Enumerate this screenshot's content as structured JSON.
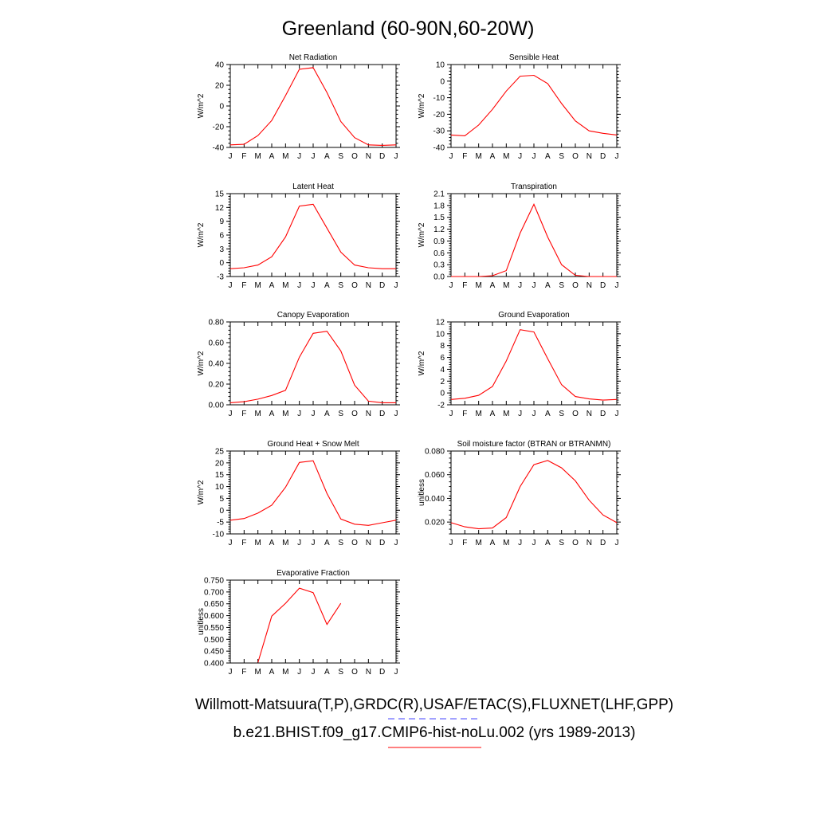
{
  "title": "Greenland (60-90N,60-20W)",
  "legend": [
    {
      "label": "Willmott-Matsuura(T,P),GRDC(R),USAF/ETAC(S),FLUXNET(LHF,GPP)",
      "color": "#4444ff",
      "style": "dashed"
    },
    {
      "label": "b.e21.BHIST.f09_g17.CMIP6-hist-noLu.002 (yrs 1989-2013)",
      "color": "#ff0000",
      "style": "solid"
    }
  ],
  "series_color": "#ff0000",
  "chart_data": [
    {
      "type": "line",
      "title": "Net Radiation",
      "ylabel": "W/m^2",
      "x": [
        "J",
        "F",
        "M",
        "A",
        "M",
        "J",
        "J",
        "A",
        "S",
        "O",
        "N",
        "D",
        "J"
      ],
      "ylim": [
        -40,
        40
      ],
      "yticks": [
        -40,
        -20,
        0,
        20,
        40
      ],
      "ytick_labels": [
        "-40",
        "-20",
        "0",
        "20",
        "40"
      ],
      "series": [
        {
          "values": [
            -37.5,
            -37,
            -28.5,
            -14,
            10,
            35.5,
            37,
            13,
            -15,
            -30.5,
            -37.5,
            -38,
            -37.5
          ]
        }
      ]
    },
    {
      "type": "line",
      "title": "Sensible Heat",
      "ylabel": "W/m^2",
      "x": [
        "J",
        "F",
        "M",
        "A",
        "M",
        "J",
        "J",
        "A",
        "S",
        "O",
        "N",
        "D",
        "J"
      ],
      "ylim": [
        -40,
        10
      ],
      "yticks": [
        -40,
        -30,
        -20,
        -10,
        0,
        10
      ],
      "ytick_labels": [
        "-40",
        "-30",
        "-20",
        "-10",
        "0",
        "10"
      ],
      "series": [
        {
          "values": [
            -32.5,
            -33,
            -26.5,
            -17,
            -6,
            3,
            3.5,
            -1.5,
            -13.5,
            -24,
            -30,
            -31.5,
            -32.5
          ]
        }
      ]
    },
    {
      "type": "line",
      "title": "Latent Heat",
      "ylabel": "W/m^2",
      "x": [
        "J",
        "F",
        "M",
        "A",
        "M",
        "J",
        "J",
        "A",
        "S",
        "O",
        "N",
        "D",
        "J"
      ],
      "ylim": [
        -3,
        15
      ],
      "yticks": [
        -3,
        0,
        3,
        6,
        9,
        12,
        15
      ],
      "ytick_labels": [
        "-3",
        "0",
        "3",
        "6",
        "9",
        "12",
        "15"
      ],
      "series": [
        {
          "values": [
            -1.3,
            -1.1,
            -0.5,
            1.3,
            5.6,
            12.3,
            12.7,
            7.5,
            2.3,
            -0.5,
            -1.1,
            -1.3,
            -1.3
          ]
        }
      ]
    },
    {
      "type": "line",
      "title": "Transpiration",
      "ylabel": "W/m^2",
      "x": [
        "J",
        "F",
        "M",
        "A",
        "M",
        "J",
        "J",
        "A",
        "S",
        "O",
        "N",
        "D",
        "J"
      ],
      "ylim": [
        0,
        2.1
      ],
      "yticks": [
        0,
        0.3,
        0.6,
        0.9,
        1.2,
        1.5,
        1.8,
        2.1
      ],
      "ytick_labels": [
        "0.0",
        "0.3",
        "0.6",
        "0.9",
        "1.2",
        "1.5",
        "1.8",
        "2.1"
      ],
      "series": [
        {
          "values": [
            0,
            0,
            0,
            0.02,
            0.15,
            1.1,
            1.83,
            1.0,
            0.3,
            0.03,
            0,
            0,
            0
          ]
        }
      ]
    },
    {
      "type": "line",
      "title": "Canopy Evaporation",
      "ylabel": "W/m^2",
      "x": [
        "J",
        "F",
        "M",
        "A",
        "M",
        "J",
        "J",
        "A",
        "S",
        "O",
        "N",
        "D",
        "J"
      ],
      "ylim": [
        0,
        0.8
      ],
      "yticks": [
        0,
        0.2,
        0.4,
        0.6,
        0.8
      ],
      "ytick_labels": [
        "0.00",
        "0.20",
        "0.40",
        "0.60",
        "0.80"
      ],
      "series": [
        {
          "values": [
            0.02,
            0.03,
            0.055,
            0.09,
            0.14,
            0.46,
            0.69,
            0.71,
            0.52,
            0.19,
            0.035,
            0.02,
            0.02
          ]
        }
      ]
    },
    {
      "type": "line",
      "title": "Ground Evaporation",
      "ylabel": "W/m^2",
      "x": [
        "J",
        "F",
        "M",
        "A",
        "M",
        "J",
        "J",
        "A",
        "S",
        "O",
        "N",
        "D",
        "J"
      ],
      "ylim": [
        -2,
        12
      ],
      "yticks": [
        -2,
        0,
        2,
        4,
        6,
        8,
        10,
        12
      ],
      "ytick_labels": [
        "-2",
        "0",
        "2",
        "4",
        "6",
        "8",
        "10",
        "12"
      ],
      "series": [
        {
          "values": [
            -1.1,
            -0.9,
            -0.4,
            1.1,
            5.4,
            10.7,
            10.3,
            5.8,
            1.4,
            -0.6,
            -1.0,
            -1.2,
            -1.1
          ]
        }
      ]
    },
    {
      "type": "line",
      "title": "Ground Heat + Snow Melt",
      "ylabel": "W/m^2",
      "x": [
        "J",
        "F",
        "M",
        "A",
        "M",
        "J",
        "J",
        "A",
        "S",
        "O",
        "N",
        "D",
        "J"
      ],
      "ylim": [
        -10,
        25
      ],
      "yticks": [
        -10,
        -5,
        0,
        5,
        10,
        15,
        20,
        25
      ],
      "ytick_labels": [
        "-10",
        "-5",
        "0",
        "5",
        "10",
        "15",
        "20",
        "25"
      ],
      "series": [
        {
          "values": [
            -4.2,
            -3.5,
            -1.2,
            2.1,
            9.7,
            20.2,
            20.9,
            7.1,
            -3.7,
            -5.9,
            -6.4,
            -5.3,
            -4.2
          ]
        }
      ]
    },
    {
      "type": "line",
      "title": "Soil moisture factor (BTRAN or BTRANMN)",
      "ylabel": "unitless",
      "x": [
        "J",
        "F",
        "M",
        "A",
        "M",
        "J",
        "J",
        "A",
        "S",
        "O",
        "N",
        "D",
        "J"
      ],
      "ylim": [
        0.01,
        0.08
      ],
      "yticks": [
        0.02,
        0.04,
        0.06,
        0.08
      ],
      "ytick_labels": [
        "0.020",
        "0.040",
        "0.060",
        "0.080"
      ],
      "series": [
        {
          "values": [
            0.0195,
            0.016,
            0.0143,
            0.015,
            0.0238,
            0.05,
            0.0685,
            0.072,
            0.0658,
            0.0548,
            0.0385,
            0.026,
            0.0195
          ]
        }
      ]
    },
    {
      "type": "line",
      "title": "Evaporative Fraction",
      "ylabel": "unitless",
      "x": [
        "J",
        "F",
        "M",
        "A",
        "M",
        "J",
        "J",
        "A",
        "S",
        "O",
        "N",
        "D",
        "J"
      ],
      "ylim": [
        0.4,
        0.75
      ],
      "yticks": [
        0.4,
        0.45,
        0.5,
        0.55,
        0.6,
        0.65,
        0.7,
        0.75
      ],
      "ytick_labels": [
        "0.400",
        "0.450",
        "0.500",
        "0.550",
        "0.600",
        "0.650",
        "0.700",
        "0.750"
      ],
      "series": [
        {
          "values": [
            null,
            null,
            0.402,
            0.598,
            0.652,
            0.716,
            0.697,
            0.563,
            0.652,
            null,
            null,
            null,
            null
          ]
        }
      ]
    }
  ]
}
